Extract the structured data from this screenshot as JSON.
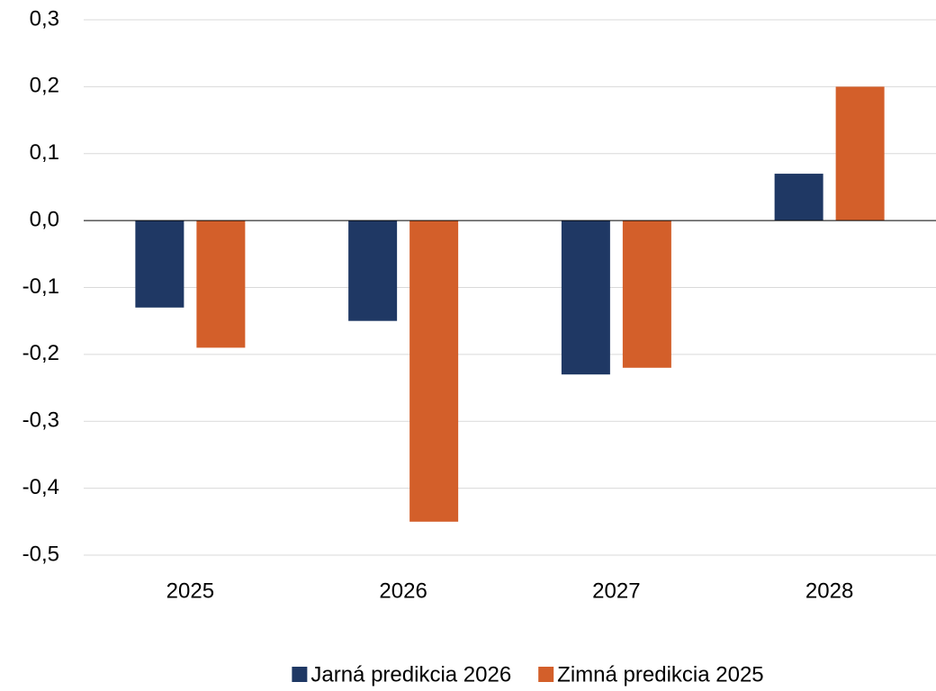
{
  "chart_data": {
    "type": "bar",
    "categories": [
      "2025",
      "2026",
      "2027",
      "2028"
    ],
    "series": [
      {
        "name": "Jarná predikcia 2026",
        "color": "#1f3864",
        "values": [
          -0.13,
          -0.15,
          -0.23,
          0.07
        ]
      },
      {
        "name": "Zimná predikcia 2025",
        "color": "#d35f2a",
        "values": [
          -0.19,
          -0.45,
          -0.22,
          0.2
        ]
      }
    ],
    "ylim": [
      -0.5,
      0.3
    ],
    "yticks": [
      {
        "value": -0.5,
        "label": "-0,5"
      },
      {
        "value": -0.4,
        "label": "-0,4"
      },
      {
        "value": -0.3,
        "label": "-0,3"
      },
      {
        "value": -0.2,
        "label": "-0,2"
      },
      {
        "value": -0.1,
        "label": "-0,1"
      },
      {
        "value": 0,
        "label": "0,0"
      },
      {
        "value": 0.1,
        "label": "0,1"
      },
      {
        "value": 0.2,
        "label": "0,2"
      },
      {
        "value": 0.3,
        "label": "0,3"
      }
    ],
    "grid": true,
    "legend": "bottom"
  }
}
